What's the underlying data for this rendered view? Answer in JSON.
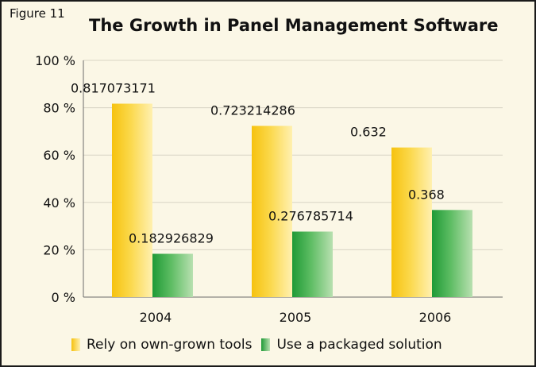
{
  "figure_label": "Figure 11",
  "chart_data": {
    "type": "bar",
    "title": "The Growth in Panel Management Software",
    "xlabel": "",
    "ylabel": "",
    "categories": [
      "2004",
      "2005",
      "2006"
    ],
    "series": [
      {
        "name": "Rely on own-grown tools",
        "values": [
          0.817073171,
          0.723214286,
          0.632
        ],
        "value_labels": [
          "0.817073171",
          "0.723214286",
          "0.632"
        ],
        "color": "#f5c518"
      },
      {
        "name": "Use a packaged solution",
        "values": [
          0.182926829,
          0.276785714,
          0.368
        ],
        "value_labels": [
          "0.182926829",
          "0.276785714",
          "0.368"
        ],
        "color": "#3aa84a"
      }
    ],
    "ylim": [
      0,
      1
    ],
    "yticks": [
      0,
      0.2,
      0.4,
      0.6,
      0.8,
      1.0
    ],
    "ytick_labels": [
      "0 %",
      "20 %",
      "40 %",
      "60 %",
      "80 %",
      "100 %"
    ],
    "grid": true,
    "legend_position": "bottom",
    "background_color": "#fbf7e6"
  }
}
